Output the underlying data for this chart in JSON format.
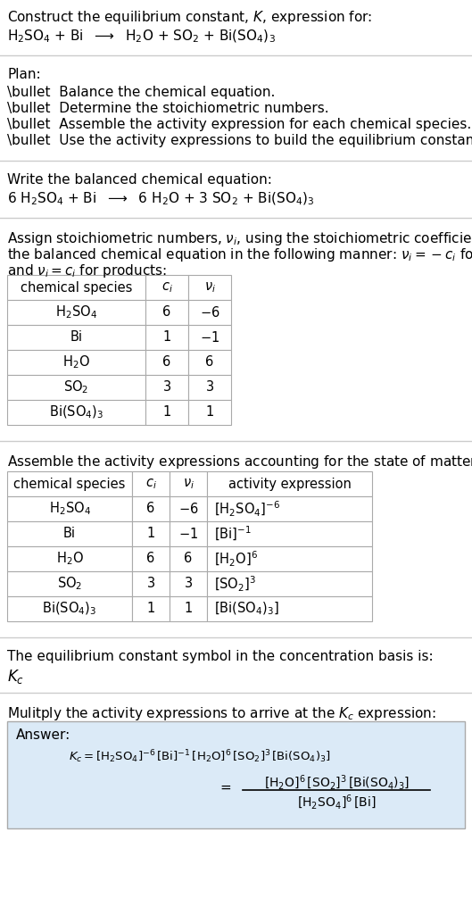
{
  "title_line1": "Construct the equilibrium constant, $K$, expression for:",
  "title_line2": "$\\mathrm{H_2SO_4}$ + Bi  $\\longrightarrow$  $\\mathrm{H_2O}$ + $\\mathrm{SO_2}$ + $\\mathrm{Bi(SO_4)_3}$",
  "plan_header": "Plan:",
  "plan_items": [
    "\\bullet  Balance the chemical equation.",
    "\\bullet  Determine the stoichiometric numbers.",
    "\\bullet  Assemble the activity expression for each chemical species.",
    "\\bullet  Use the activity expressions to build the equilibrium constant expression."
  ],
  "balanced_header": "Write the balanced chemical equation:",
  "balanced_eq": "6 $\\mathrm{H_2SO_4}$ + Bi  $\\longrightarrow$  6 $\\mathrm{H_2O}$ + 3 $\\mathrm{SO_2}$ + $\\mathrm{Bi(SO_4)_3}$",
  "stoich_line1": "Assign stoichiometric numbers, $\\nu_i$, using the stoichiometric coefficients, $c_i$, from",
  "stoich_line2": "the balanced chemical equation in the following manner: $\\nu_i = -c_i$ for reactants",
  "stoich_line3": "and $\\nu_i = c_i$ for products:",
  "table1_cols": [
    "chemical species",
    "$c_i$",
    "$\\nu_i$"
  ],
  "table1_rows": [
    [
      "$\\mathrm{H_2SO_4}$",
      "6",
      "$-$6"
    ],
    [
      "Bi",
      "1",
      "$-$1"
    ],
    [
      "$\\mathrm{H_2O}$",
      "6",
      "6"
    ],
    [
      "$\\mathrm{SO_2}$",
      "3",
      "3"
    ],
    [
      "$\\mathrm{Bi(SO_4)_3}$",
      "1",
      "1"
    ]
  ],
  "activity_header": "Assemble the activity expressions accounting for the state of matter and $\\nu_i$:",
  "table2_cols": [
    "chemical species",
    "$c_i$",
    "$\\nu_i$",
    "activity expression"
  ],
  "table2_rows": [
    [
      "$\\mathrm{H_2SO_4}$",
      "6",
      "$-$6",
      "$[\\mathrm{H_2SO_4}]^{-6}$"
    ],
    [
      "Bi",
      "1",
      "$-$1",
      "$[\\mathrm{Bi}]^{-1}$"
    ],
    [
      "$\\mathrm{H_2O}$",
      "6",
      "6",
      "$[\\mathrm{H_2O}]^{6}$"
    ],
    [
      "$\\mathrm{SO_2}$",
      "3",
      "3",
      "$[\\mathrm{SO_2}]^{3}$"
    ],
    [
      "$\\mathrm{Bi(SO_4)_3}$",
      "1",
      "1",
      "$[\\mathrm{Bi(SO_4)_3}]$"
    ]
  ],
  "kc_header": "The equilibrium constant symbol in the concentration basis is:",
  "kc_symbol": "$K_c$",
  "multiply_header": "Mulitply the activity expressions to arrive at the $K_c$ expression:",
  "answer_label": "Answer:",
  "answer_eq_line1": "$K_c = [\\mathrm{H_2SO_4}]^{-6}\\,[\\mathrm{Bi}]^{-1}\\,[\\mathrm{H_2O}]^{6}\\,[\\mathrm{SO_2}]^{3}\\,[\\mathrm{Bi(SO_4)_3}]$",
  "answer_numerator": "$[\\mathrm{H_2O}]^{6}\\,[\\mathrm{SO_2}]^{3}\\,[\\mathrm{Bi(SO_4)_3}]$",
  "answer_denominator": "$[\\mathrm{H_2SO_4}]^{6}\\,[\\mathrm{Bi}]$",
  "bg_color": "#ffffff",
  "text_color": "#000000",
  "table_border_color": "#aaaaaa",
  "answer_bg_color": "#dbeaf7",
  "separator_color": "#cccccc"
}
